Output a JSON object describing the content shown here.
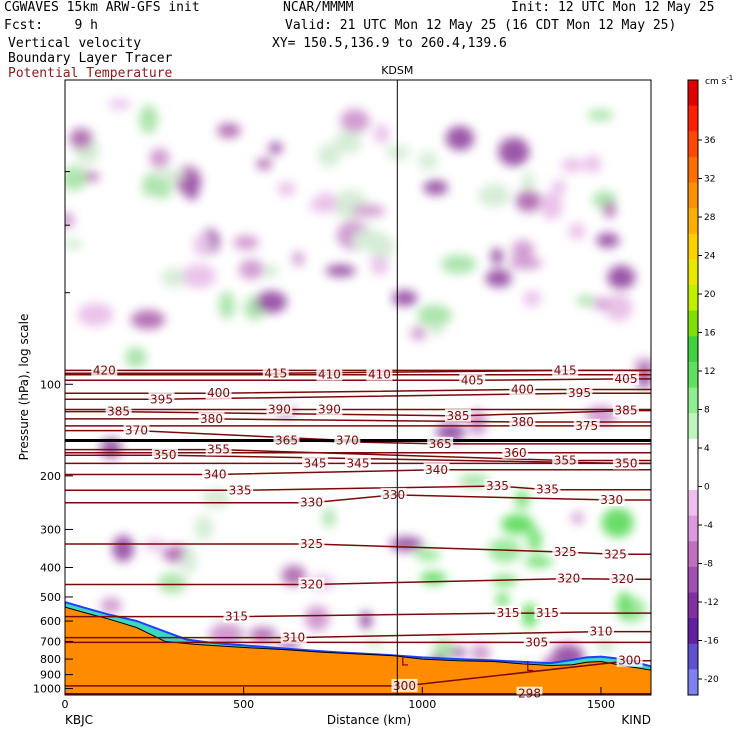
{
  "header": {
    "model_line": "CGWAVES 15km ARW-GFS init",
    "fcst_line": "Fcst:    9 h",
    "center": "NCAR/MMMM",
    "init": "Init: 12 UTC Mon 12 May 25",
    "valid": "Valid: 21 UTC Mon 12 May 25 (16 CDT Mon 12 May 25)",
    "xy": "XY= 150.5,136.9 to 260.4,139.6",
    "fields": [
      "Vertical velocity",
      "Boundary Layer Tracer",
      "Potential Temperature"
    ],
    "field_colors": [
      "#000000",
      "#000000",
      "#8b1a1a"
    ]
  },
  "chart_data": {
    "type": "heatmap",
    "title": "",
    "xlabel": "Distance (km)",
    "ylabel": "Pressure (hPa), log scale",
    "xlim": [
      0,
      1640
    ],
    "ylim": [
      1050,
      10
    ],
    "yscale": "log",
    "x_ticks": [
      0,
      500,
      1000,
      1500
    ],
    "y_ticks": [
      100,
      200,
      300,
      400,
      500,
      600,
      700,
      800,
      900,
      1000
    ],
    "endpoint_labels": [
      "KBJC",
      "KIND"
    ],
    "marker": {
      "label": "KDSM",
      "x": 930
    },
    "colorbar": {
      "unit": "cm s",
      "unit_exp": "-1",
      "ticks": [
        36,
        32,
        28,
        24,
        20,
        16,
        12,
        8,
        4,
        0,
        -4,
        -8,
        -12,
        -16,
        -20
      ],
      "colors": [
        "#e00000",
        "#ff2000",
        "#ff4800",
        "#ff7000",
        "#ff9000",
        "#ffb000",
        "#ffd000",
        "#e8e800",
        "#c0f000",
        "#80e000",
        "#40d040",
        "#60e060",
        "#90ee90",
        "#c0f5c0",
        "#ffffff",
        "#ffffff",
        "#eec0ee",
        "#dd99dd",
        "#c070c0",
        "#a050b0",
        "#8030a0",
        "#6020a0",
        "#6050d0",
        "#8080f0"
      ]
    },
    "theta_contours": {
      "color": "#7a0a0a",
      "labels": [
        {
          "v": 420,
          "x": 110,
          "p": 90
        },
        {
          "v": 415,
          "x": 590,
          "p": 92
        },
        {
          "v": 410,
          "x": 740,
          "p": 93
        },
        {
          "v": 410,
          "x": 880,
          "p": 93
        },
        {
          "v": 415,
          "x": 1400,
          "p": 90
        },
        {
          "v": 405,
          "x": 1140,
          "p": 97
        },
        {
          "v": 405,
          "x": 1570,
          "p": 96
        },
        {
          "v": 400,
          "x": 430,
          "p": 107
        },
        {
          "v": 400,
          "x": 1280,
          "p": 104
        },
        {
          "v": 395,
          "x": 270,
          "p": 112
        },
        {
          "v": 395,
          "x": 1440,
          "p": 107
        },
        {
          "v": 390,
          "x": 600,
          "p": 121
        },
        {
          "v": 390,
          "x": 740,
          "p": 121
        },
        {
          "v": 385,
          "x": 150,
          "p": 123
        },
        {
          "v": 385,
          "x": 1100,
          "p": 127
        },
        {
          "v": 385,
          "x": 1570,
          "p": 122
        },
        {
          "v": 380,
          "x": 410,
          "p": 130
        },
        {
          "v": 380,
          "x": 1280,
          "p": 133
        },
        {
          "v": 375,
          "x": 1460,
          "p": 137
        },
        {
          "v": 370,
          "x": 200,
          "p": 142
        },
        {
          "v": 370,
          "x": 790,
          "p": 153
        },
        {
          "v": 365,
          "x": 620,
          "p": 153
        },
        {
          "v": 365,
          "x": 1050,
          "p": 157
        },
        {
          "v": 360,
          "x": 1260,
          "p": 168
        },
        {
          "v": 355,
          "x": 430,
          "p": 164
        },
        {
          "v": 355,
          "x": 1400,
          "p": 178
        },
        {
          "v": 350,
          "x": 280,
          "p": 171
        },
        {
          "v": 350,
          "x": 1570,
          "p": 182
        },
        {
          "v": 345,
          "x": 700,
          "p": 182
        },
        {
          "v": 345,
          "x": 820,
          "p": 182
        },
        {
          "v": 340,
          "x": 420,
          "p": 198
        },
        {
          "v": 340,
          "x": 1040,
          "p": 191
        },
        {
          "v": 335,
          "x": 490,
          "p": 223
        },
        {
          "v": 335,
          "x": 1210,
          "p": 216
        },
        {
          "v": 335,
          "x": 1350,
          "p": 222
        },
        {
          "v": 330,
          "x": 690,
          "p": 245
        },
        {
          "v": 330,
          "x": 920,
          "p": 231
        },
        {
          "v": 330,
          "x": 1530,
          "p": 240
        },
        {
          "v": 325,
          "x": 690,
          "p": 335
        },
        {
          "v": 325,
          "x": 1400,
          "p": 356
        },
        {
          "v": 325,
          "x": 1540,
          "p": 362
        },
        {
          "v": 320,
          "x": 690,
          "p": 455
        },
        {
          "v": 320,
          "x": 1410,
          "p": 435
        },
        {
          "v": 320,
          "x": 1560,
          "p": 437
        },
        {
          "v": 315,
          "x": 480,
          "p": 580
        },
        {
          "v": 315,
          "x": 1240,
          "p": 565
        },
        {
          "v": 315,
          "x": 1350,
          "p": 565
        },
        {
          "v": 310,
          "x": 640,
          "p": 680
        },
        {
          "v": 310,
          "x": 1500,
          "p": 650
        },
        {
          "v": 305,
          "x": 1320,
          "p": 705
        },
        {
          "v": 300,
          "x": 1580,
          "p": 810
        },
        {
          "v": 300,
          "x": 950,
          "p": 980
        },
        {
          "v": 298,
          "x": 1300,
          "p": 1040
        }
      ],
      "low_markers": [
        {
          "x": 950,
          "p": 840
        },
        {
          "x": 1300,
          "p": 875
        }
      ]
    },
    "terrain": {
      "color": "#ff8c00",
      "x": [
        0,
        60,
        120,
        200,
        280,
        360,
        440,
        520,
        620,
        720,
        820,
        920,
        1000,
        1100,
        1200,
        1280,
        1360,
        1420,
        1460,
        1500,
        1560,
        1640
      ],
      "p": [
        540,
        565,
        590,
        630,
        700,
        715,
        725,
        735,
        745,
        760,
        770,
        780,
        800,
        810,
        815,
        830,
        840,
        835,
        820,
        815,
        840,
        870
      ]
    },
    "pbl_top": {
      "x": [
        0,
        60,
        120,
        200,
        280,
        340,
        400,
        460,
        560,
        660,
        760,
        900,
        1000,
        1100,
        1200,
        1300,
        1360,
        1420,
        1460,
        1500,
        1560,
        1640
      ],
      "p": [
        520,
        545,
        570,
        600,
        650,
        690,
        705,
        715,
        730,
        745,
        760,
        775,
        790,
        800,
        808,
        820,
        825,
        805,
        790,
        785,
        800,
        845
      ]
    }
  }
}
